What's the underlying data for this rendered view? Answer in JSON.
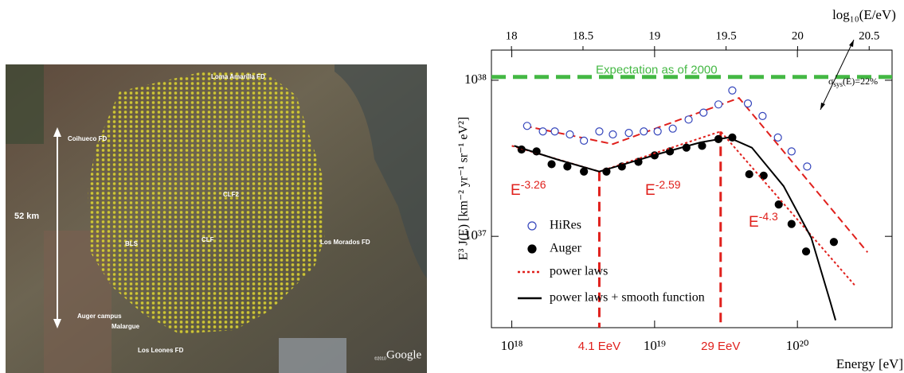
{
  "map": {
    "labels": [
      "Loma Amarilla FD",
      "Coihueco FD",
      "52 km",
      "CLF2",
      "BLS",
      "CLF",
      "Los Morados FD",
      "Auger campus",
      "Malargue",
      "Los Leones FD",
      "©2010",
      "Google"
    ]
  },
  "chart_data": {
    "type": "scatter",
    "xlabel": "Energy [eV]",
    "ylabel": "E³ J(E) [km⁻² yr⁻¹ sr⁻¹ eV²]",
    "x2label": "log₁₀(E/eV)",
    "log_x": true,
    "log_y": true,
    "xlim": [
      7.2e+17,
      4.6e+20
    ],
    "xticks": [
      {
        "value": 1e+18,
        "label": "10¹⁸"
      },
      {
        "value": 1e+19,
        "label": "10¹⁹"
      },
      {
        "value": 1e+20,
        "label": "10²⁰"
      }
    ],
    "x2lim": [
      17.86,
      20.66
    ],
    "x2ticks": [
      18,
      18.5,
      19,
      19.5,
      20,
      20.5
    ],
    "ylim": [
      2.6e+36,
      1.56e+38
    ],
    "yticks": [
      {
        "value": 1e+37,
        "label": "10³⁷"
      },
      {
        "value": 1e+38,
        "label": "10³⁸"
      }
    ],
    "legend": "lower left",
    "series": [
      {
        "name": "HiRes",
        "style": "open-circle",
        "color": "#3344bb",
        "x": [
          1.28e+18,
          1.65e+18,
          2e+18,
          2.55e+18,
          3.2e+18,
          4.1e+18,
          5.1e+18,
          6.6e+18,
          8.4e+18,
          1.05e+19,
          1.34e+19,
          1.73e+19,
          2.2e+19,
          2.8e+19,
          3.5e+19,
          4.5e+19,
          5.7e+19,
          7.3e+19,
          9.1e+19,
          1.17e+20
        ],
        "y": [
          5.1e+37,
          4.7e+37,
          4.7e+37,
          4.5e+37,
          4.1e+37,
          4.7e+37,
          4.5e+37,
          4.6e+37,
          4.7e+37,
          4.7e+37,
          4.9e+37,
          5.6e+37,
          6.2e+37,
          7e+37,
          8.6e+37,
          7.1e+37,
          5.9e+37,
          4.3e+37,
          3.5e+37,
          2.8e+37
        ]
      },
      {
        "name": "Auger",
        "style": "filled-circle",
        "color": "#000000",
        "x": [
          1.17e+18,
          1.49e+18,
          1.9e+18,
          2.45e+18,
          3.2e+18,
          4.6e+18,
          5.9e+18,
          7.7e+18,
          1e+19,
          1.28e+19,
          1.67e+19,
          2.15e+19,
          2.8e+19,
          3.5e+19,
          4.6e+19,
          5.8e+19,
          7.4e+19,
          9.1e+19,
          1.15e+20,
          1.8e+20
        ],
        "y": [
          3.6e+37,
          3.5e+37,
          2.9e+37,
          2.8e+37,
          2.6e+37,
          2.6e+37,
          2.8e+37,
          3e+37,
          3.3e+37,
          3.5e+37,
          3.7e+37,
          3.8e+37,
          4.2e+37,
          4.3e+37,
          2.5e+37,
          2.45e+37,
          1.6e+37,
          1.2e+37,
          8e+36,
          9.2e+36
        ]
      },
      {
        "name": "power laws",
        "style": "dotted-line",
        "color": "#e0201c",
        "x": [
          1e+18,
          4.1e+18,
          2.9e+19,
          2.55e+20
        ],
        "y": [
          3.8e+37,
          2.6e+37,
          4.7e+37,
          4.8e+36
        ]
      },
      {
        "name": "power laws + smooth function",
        "style": "solid-line",
        "color": "#000000",
        "x": [
          1.04e+18,
          2.1e+18,
          4.1e+18,
          1.1e+19,
          2.1e+19,
          3.3e+19,
          4.8e+19,
          8e+19,
          1.25e+20,
          1.7e+20,
          1.85e+20
        ],
        "y": [
          3.8e+37,
          3.1e+37,
          2.6e+37,
          3.4e+37,
          4e+37,
          4.3e+37,
          3.7e+37,
          2.1e+37,
          9.8e+36,
          3.8e+36,
          2.9e+36
        ]
      }
    ],
    "fit_lines": [
      {
        "style": "dashed-line",
        "color": "#e0201c",
        "x": [
          1.23e+18,
          5.1e+18,
          3.9e+19,
          3.1e+20
        ],
        "y": [
          5.1e+37,
          3.9e+37,
          7.7e+37,
          7.9e+36
        ]
      }
    ],
    "reference_line": {
      "label": "Expectation as of 2000",
      "y": 1.05e+38,
      "color": "#44b844"
    },
    "vlines": [
      {
        "x": 4.1e+18,
        "y": 2.6e+37,
        "label": "4.1 EeV",
        "color": "#e0201c"
      },
      {
        "x": 2.9e+19,
        "y": 4.7e+37,
        "label": "29 EeV",
        "color": "#e0201c"
      }
    ],
    "annotations": [
      {
        "base": "E",
        "exponent": "-3.26"
      },
      {
        "base": "E",
        "exponent": "-2.59"
      },
      {
        "base": "E",
        "exponent": "-4.3"
      }
    ],
    "sys_note": {
      "base": "σ",
      "subscript": "sys",
      "rest": "(E)=22%"
    }
  }
}
